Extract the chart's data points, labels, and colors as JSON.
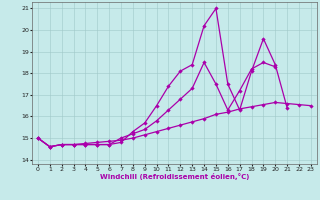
{
  "xlabel": "Windchill (Refroidissement éolien,°C)",
  "xlim": [
    -0.5,
    23.5
  ],
  "ylim": [
    13.8,
    21.3
  ],
  "yticks": [
    14,
    15,
    16,
    17,
    18,
    19,
    20,
    21
  ],
  "xticks": [
    0,
    1,
    2,
    3,
    4,
    5,
    6,
    7,
    8,
    9,
    10,
    11,
    12,
    13,
    14,
    15,
    16,
    17,
    18,
    19,
    20,
    21,
    22,
    23
  ],
  "bg_color": "#c6eaea",
  "grid_color": "#a0c8c8",
  "line_color": "#aa00aa",
  "line1_y": [
    15.0,
    14.6,
    14.7,
    14.7,
    14.7,
    14.7,
    14.7,
    14.8,
    15.3,
    15.7,
    16.5,
    17.4,
    18.1,
    18.4,
    20.2,
    21.0,
    17.5,
    16.3,
    18.1,
    19.6,
    18.4,
    16.4,
    null,
    null
  ],
  "line2_y": [
    15.0,
    14.6,
    14.7,
    14.7,
    14.7,
    14.7,
    14.7,
    15.0,
    15.2,
    15.4,
    15.8,
    16.3,
    16.8,
    17.3,
    18.5,
    17.5,
    16.3,
    17.2,
    18.2,
    18.5,
    18.3,
    null,
    null,
    null
  ],
  "line3_y": [
    15.0,
    14.6,
    14.7,
    14.7,
    14.75,
    14.8,
    14.85,
    14.9,
    15.0,
    15.15,
    15.3,
    15.45,
    15.6,
    15.75,
    15.9,
    16.1,
    16.2,
    16.35,
    16.45,
    16.55,
    16.65,
    16.6,
    16.55,
    16.5
  ],
  "marker": "D",
  "marker_size": 2.2,
  "line_width": 0.9
}
